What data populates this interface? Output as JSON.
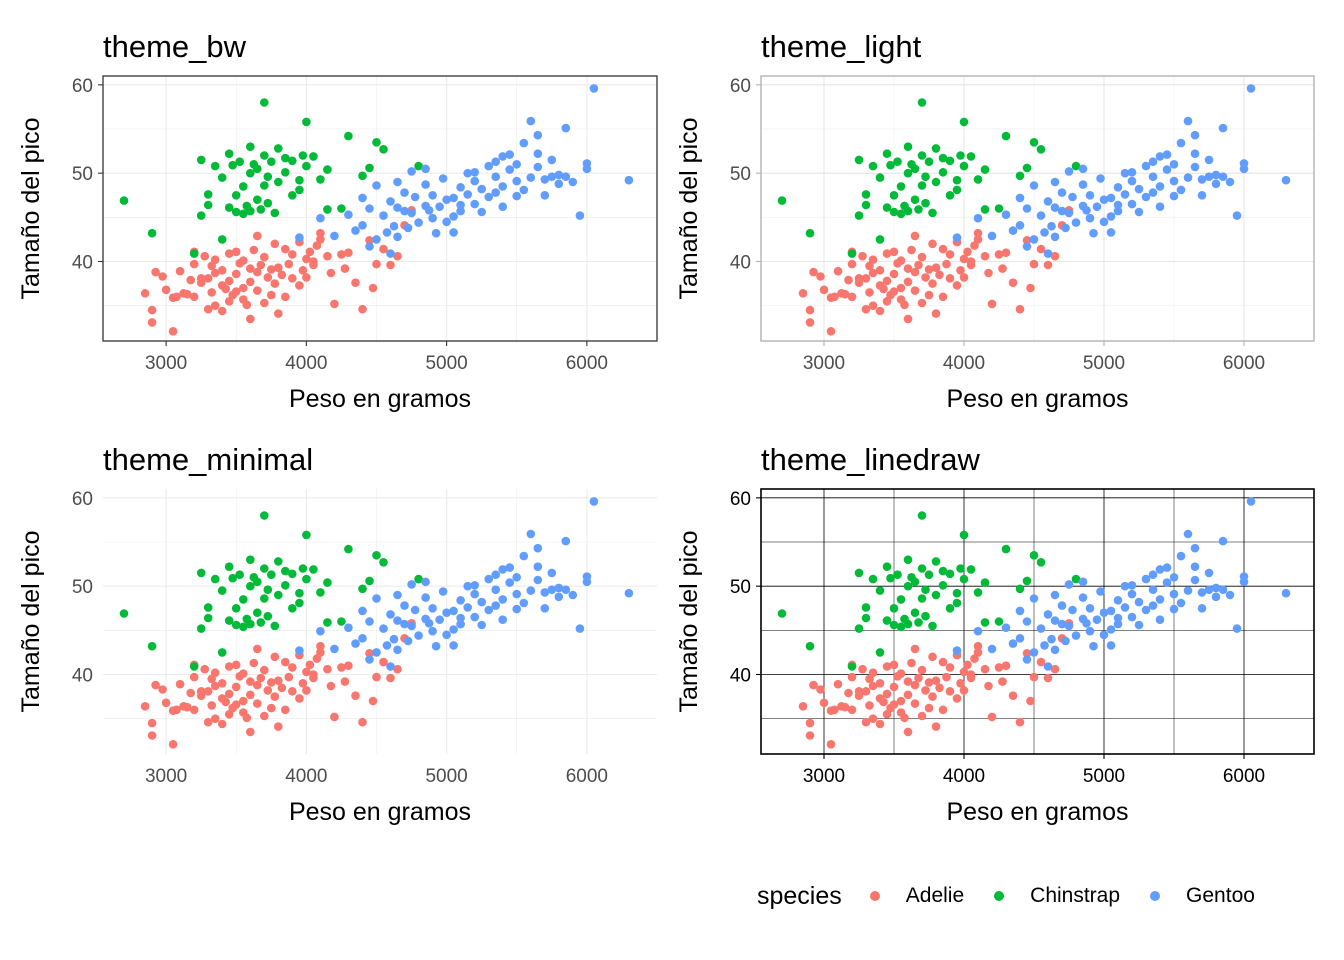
{
  "chart_data": [
    {
      "type": "scatter",
      "title": "theme_bw",
      "theme": "bw",
      "xlabel": "Peso en gramos",
      "ylabel": "Tamaño del pico",
      "xlim": [
        2550,
        6500
      ],
      "ylim": [
        31,
        61
      ],
      "xticks": [
        3000,
        4000,
        5000,
        6000
      ],
      "xtick_labels": [
        "3000",
        "4000",
        "5000",
        "6000"
      ],
      "yticks": [
        40,
        50,
        60
      ],
      "ytick_labels": [
        "40",
        "50",
        "60"
      ],
      "grid": true,
      "series_ref": "penguins"
    },
    {
      "type": "scatter",
      "title": "theme_light",
      "theme": "light",
      "xlabel": "Peso en gramos",
      "ylabel": "Tamaño del pico",
      "xlim": [
        2550,
        6500
      ],
      "ylim": [
        31,
        61
      ],
      "xticks": [
        3000,
        4000,
        5000,
        6000
      ],
      "xtick_labels": [
        "3000",
        "4000",
        "5000",
        "6000"
      ],
      "yticks": [
        40,
        50,
        60
      ],
      "ytick_labels": [
        "40",
        "50",
        "60"
      ],
      "grid": true,
      "series_ref": "penguins"
    },
    {
      "type": "scatter",
      "title": "theme_minimal",
      "theme": "minimal",
      "xlabel": "Peso en gramos",
      "ylabel": "Tamaño del pico",
      "xlim": [
        2550,
        6500
      ],
      "ylim": [
        31,
        61
      ],
      "xticks": [
        3000,
        4000,
        5000,
        6000
      ],
      "xtick_labels": [
        "3000",
        "4000",
        "5000",
        "6000"
      ],
      "yticks": [
        40,
        50,
        60
      ],
      "ytick_labels": [
        "40",
        "50",
        "60"
      ],
      "grid": true,
      "series_ref": "penguins"
    },
    {
      "type": "scatter",
      "title": "theme_linedraw",
      "theme": "linedraw",
      "xlabel": "Peso en gramos",
      "ylabel": "Tamaño del pico",
      "xlim": [
        2550,
        6500
      ],
      "ylim": [
        31,
        61
      ],
      "xticks": [
        3000,
        4000,
        5000,
        6000
      ],
      "xtick_labels": [
        "3000",
        "4000",
        "5000",
        "6000"
      ],
      "yticks": [
        40,
        50,
        60
      ],
      "ytick_labels": [
        "40",
        "50",
        "60"
      ],
      "grid": true,
      "series_ref": "penguins"
    }
  ],
  "series": [
    {
      "name": "Adelie",
      "color": "#F8766D",
      "points": [
        [
          2850,
          36.4
        ],
        [
          2900,
          33.1
        ],
        [
          2900,
          34.5
        ],
        [
          2925,
          38.8
        ],
        [
          2975,
          38.3
        ],
        [
          3000,
          36.8
        ],
        [
          3050,
          32.1
        ],
        [
          3050,
          35.9
        ],
        [
          3075,
          36.0
        ],
        [
          3100,
          38.9
        ],
        [
          3125,
          36.4
        ],
        [
          3150,
          36.3
        ],
        [
          3175,
          37.9
        ],
        [
          3200,
          36.0
        ],
        [
          3200,
          39.7
        ],
        [
          3200,
          41.1
        ],
        [
          3250,
          37.6
        ],
        [
          3250,
          38.1
        ],
        [
          3275,
          40.6
        ],
        [
          3300,
          34.6
        ],
        [
          3300,
          38.1
        ],
        [
          3325,
          39.5
        ],
        [
          3325,
          36.5
        ],
        [
          3350,
          40.2
        ],
        [
          3350,
          35.0
        ],
        [
          3400,
          37.3
        ],
        [
          3400,
          39.0
        ],
        [
          3400,
          34.4
        ],
        [
          3425,
          36.9
        ],
        [
          3450,
          35.5
        ],
        [
          3450,
          37.8
        ],
        [
          3450,
          40.9
        ],
        [
          3475,
          36.2
        ],
        [
          3500,
          41.1
        ],
        [
          3500,
          38.6
        ],
        [
          3500,
          36.6
        ],
        [
          3525,
          39.8
        ],
        [
          3550,
          37.0
        ],
        [
          3550,
          40.1
        ],
        [
          3575,
          35.1
        ],
        [
          3600,
          39.2
        ],
        [
          3600,
          33.5
        ],
        [
          3600,
          37.7
        ],
        [
          3625,
          41.3
        ],
        [
          3650,
          38.8
        ],
        [
          3650,
          36.7
        ],
        [
          3675,
          39.6
        ],
        [
          3700,
          40.5
        ],
        [
          3700,
          35.3
        ],
        [
          3725,
          38.2
        ],
        [
          3750,
          39.1
        ],
        [
          3750,
          36.2
        ],
        [
          3775,
          42.0
        ],
        [
          3775,
          37.5
        ],
        [
          3800,
          39.3
        ],
        [
          3800,
          34.1
        ],
        [
          3825,
          38.5
        ],
        [
          3850,
          41.4
        ],
        [
          3850,
          36.0
        ],
        [
          3875,
          39.7
        ],
        [
          3900,
          38.1
        ],
        [
          3900,
          40.8
        ],
        [
          3950,
          37.3
        ],
        [
          3950,
          42.2
        ],
        [
          3975,
          39.0
        ],
        [
          4000,
          40.3
        ],
        [
          4000,
          38.2
        ],
        [
          4025,
          41.1
        ],
        [
          4050,
          40.0
        ],
        [
          4050,
          39.6
        ],
        [
          4075,
          41.8
        ],
        [
          4100,
          42.5
        ],
        [
          4150,
          40.6
        ],
        [
          4175,
          38.7
        ],
        [
          4200,
          35.2
        ],
        [
          4250,
          40.8
        ],
        [
          4275,
          39.2
        ],
        [
          4300,
          41.0
        ],
        [
          4350,
          37.6
        ],
        [
          4400,
          34.6
        ],
        [
          4450,
          42.4
        ],
        [
          4475,
          37.0
        ],
        [
          4500,
          39.7
        ],
        [
          4550,
          41.4
        ],
        [
          4600,
          39.6
        ],
        [
          4650,
          40.6
        ],
        [
          4700,
          44.1
        ],
        [
          4750,
          45.8
        ],
        [
          3350,
          38.7
        ],
        [
          3650,
          42.9
        ],
        [
          4100,
          43.2
        ],
        [
          3550,
          35.7
        ]
      ]
    },
    {
      "name": "Chinstrap",
      "color": "#00BA38",
      "points": [
        [
          2700,
          46.9
        ],
        [
          2900,
          43.2
        ],
        [
          3200,
          40.9
        ],
        [
          3250,
          51.5
        ],
        [
          3250,
          45.2
        ],
        [
          3300,
          47.6
        ],
        [
          3300,
          46.4
        ],
        [
          3350,
          50.8
        ],
        [
          3400,
          42.5
        ],
        [
          3400,
          49.5
        ],
        [
          3450,
          46.1
        ],
        [
          3450,
          52.2
        ],
        [
          3475,
          50.9
        ],
        [
          3500,
          45.6
        ],
        [
          3500,
          47.5
        ],
        [
          3525,
          51.3
        ],
        [
          3550,
          45.4
        ],
        [
          3550,
          48.5
        ],
        [
          3575,
          46.3
        ],
        [
          3600,
          50.0
        ],
        [
          3600,
          45.7
        ],
        [
          3625,
          51.0
        ],
        [
          3650,
          47.0
        ],
        [
          3650,
          50.5
        ],
        [
          3675,
          45.9
        ],
        [
          3700,
          58.0
        ],
        [
          3700,
          52.0
        ],
        [
          3725,
          46.6
        ],
        [
          3725,
          49.6
        ],
        [
          3750,
          51.3
        ],
        [
          3775,
          45.5
        ],
        [
          3800,
          52.8
        ],
        [
          3800,
          49.0
        ],
        [
          3850,
          50.1
        ],
        [
          3900,
          51.4
        ],
        [
          3900,
          47.5
        ],
        [
          3950,
          49.2
        ],
        [
          3975,
          52.0
        ],
        [
          4000,
          55.8
        ],
        [
          4000,
          50.8
        ],
        [
          4050,
          51.9
        ],
        [
          4100,
          49.3
        ],
        [
          4150,
          45.9
        ],
        [
          4300,
          54.2
        ],
        [
          4400,
          49.7
        ],
        [
          4450,
          50.6
        ],
        [
          4500,
          53.5
        ],
        [
          4550,
          52.7
        ],
        [
          4150,
          50.4
        ],
        [
          3850,
          51.7
        ],
        [
          4800,
          50.8
        ],
        [
          3950,
          48.1
        ],
        [
          4250,
          46.0
        ],
        [
          3700,
          48.6
        ],
        [
          3600,
          53.0
        ]
      ]
    },
    {
      "name": "Gentoo",
      "color": "#619CFF",
      "points": [
        [
          3950,
          42.7
        ],
        [
          4100,
          44.9
        ],
        [
          4200,
          42.9
        ],
        [
          4300,
          45.3
        ],
        [
          4350,
          43.5
        ],
        [
          4400,
          47.2
        ],
        [
          4400,
          44.1
        ],
        [
          4450,
          46.0
        ],
        [
          4450,
          41.7
        ],
        [
          4500,
          48.6
        ],
        [
          4500,
          42.5
        ],
        [
          4550,
          45.2
        ],
        [
          4575,
          43.3
        ],
        [
          4600,
          46.8
        ],
        [
          4600,
          40.9
        ],
        [
          4625,
          44.0
        ],
        [
          4650,
          49.0
        ],
        [
          4650,
          46.1
        ],
        [
          4700,
          45.7
        ],
        [
          4700,
          47.8
        ],
        [
          4725,
          43.8
        ],
        [
          4750,
          50.2
        ],
        [
          4750,
          45.5
        ],
        [
          4775,
          47.3
        ],
        [
          4800,
          44.4
        ],
        [
          4850,
          46.3
        ],
        [
          4850,
          48.7
        ],
        [
          4875,
          45.8
        ],
        [
          4900,
          47.5
        ],
        [
          4925,
          43.2
        ],
        [
          4950,
          46.2
        ],
        [
          4975,
          49.4
        ],
        [
          5000,
          47.0
        ],
        [
          5000,
          44.5
        ],
        [
          5050,
          45.1
        ],
        [
          5050,
          47.2
        ],
        [
          5100,
          46.4
        ],
        [
          5100,
          48.4
        ],
        [
          5150,
          50.0
        ],
        [
          5150,
          47.6
        ],
        [
          5200,
          46.5
        ],
        [
          5200,
          49.1
        ],
        [
          5250,
          45.6
        ],
        [
          5250,
          48.2
        ],
        [
          5300,
          50.8
        ],
        [
          5300,
          47.3
        ],
        [
          5350,
          49.6
        ],
        [
          5350,
          51.3
        ],
        [
          5400,
          48.5
        ],
        [
          5400,
          46.2
        ],
        [
          5450,
          50.4
        ],
        [
          5450,
          52.1
        ],
        [
          5500,
          49.1
        ],
        [
          5500,
          51.0
        ],
        [
          5550,
          48.1
        ],
        [
          5550,
          53.4
        ],
        [
          5600,
          55.9
        ],
        [
          5600,
          49.5
        ],
        [
          5650,
          50.7
        ],
        [
          5650,
          54.3
        ],
        [
          5700,
          49.3
        ],
        [
          5700,
          47.5
        ],
        [
          5750,
          51.5
        ],
        [
          5800,
          49.8
        ],
        [
          5800,
          48.8
        ],
        [
          5850,
          55.1
        ],
        [
          5850,
          49.6
        ],
        [
          5900,
          49.0
        ],
        [
          5950,
          45.2
        ],
        [
          6000,
          51.1
        ],
        [
          6000,
          50.5
        ],
        [
          6050,
          59.6
        ],
        [
          6300,
          49.2
        ],
        [
          5100,
          45.7
        ],
        [
          5200,
          50.1
        ],
        [
          5400,
          51.9
        ],
        [
          5500,
          47.4
        ],
        [
          4900,
          44.9
        ],
        [
          5350,
          47.8
        ],
        [
          5650,
          52.2
        ],
        [
          5050,
          43.3
        ],
        [
          5750,
          49.6
        ],
        [
          4650,
          42.8
        ],
        [
          4850,
          50.5
        ]
      ]
    }
  ],
  "legend": {
    "title": "species",
    "items": [
      {
        "label": "Adelie",
        "color": "#F8766D"
      },
      {
        "label": "Chinstrap",
        "color": "#00BA38"
      },
      {
        "label": "Gentoo",
        "color": "#619CFF"
      }
    ]
  }
}
